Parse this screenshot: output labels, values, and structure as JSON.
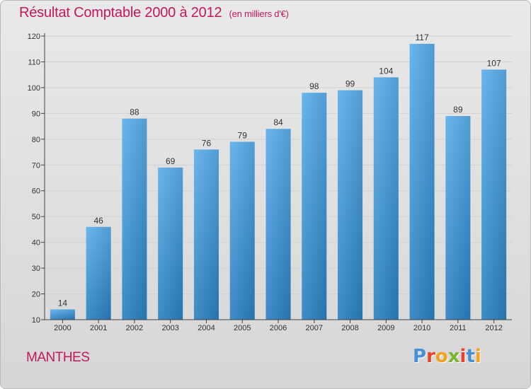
{
  "header": {
    "title": "Résultat Comptable 2000 à 2012",
    "subtitle": "(en milliers d'€)"
  },
  "footer": {
    "commune": "MANTHES",
    "logo": {
      "text": "Proxiti",
      "letter_colors": [
        "#4a8fd4",
        "#e8432b",
        "#f3a21c",
        "#7ab32c",
        "#e8432b",
        "#4a8fd4",
        "#f3a21c"
      ]
    }
  },
  "colors": {
    "title": "#c4185c",
    "bar_top": "#5aaeea",
    "bar_bottom": "#2a7fc0",
    "grid": "#d2d2d2",
    "axis": "#444444"
  },
  "chart_data": {
    "type": "bar",
    "title": "Résultat Comptable 2000 à 2012",
    "subtitle": "(en milliers d'€)",
    "categories": [
      "2000",
      "2001",
      "2002",
      "2003",
      "2004",
      "2005",
      "2006",
      "2007",
      "2008",
      "2009",
      "2010",
      "2011",
      "2012"
    ],
    "values": [
      14,
      46,
      88,
      69,
      76,
      79,
      84,
      98,
      99,
      104,
      117,
      89,
      107
    ],
    "ylim": [
      10,
      120
    ],
    "yticks": [
      10,
      20,
      30,
      40,
      50,
      60,
      70,
      80,
      90,
      100,
      110,
      120
    ],
    "grid": true,
    "data_labels": true
  }
}
